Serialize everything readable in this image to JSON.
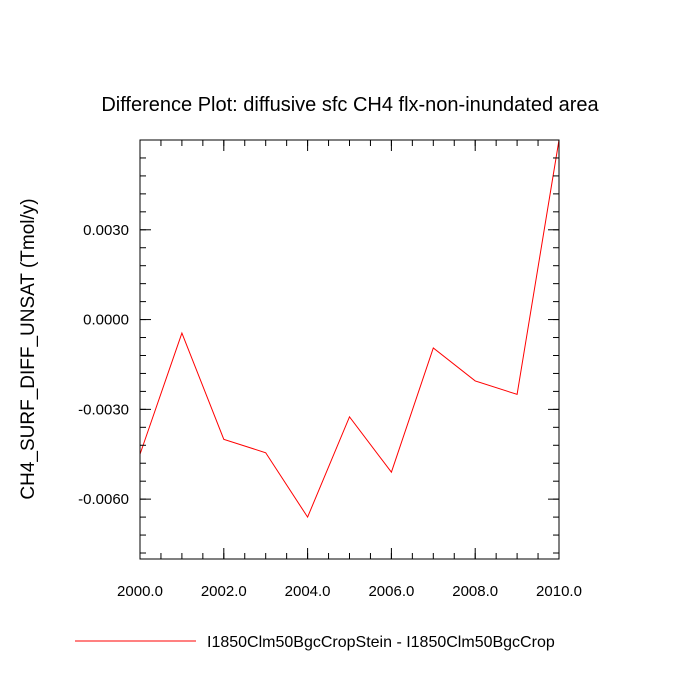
{
  "chart_data": {
    "type": "line",
    "title": "Difference Plot: diffusive sfc CH4 flx-non-inundated area",
    "xlabel": "",
    "ylabel": "CH4_SURF_DIFF_UNSAT  (Tmol/y)",
    "xlim": [
      2000.0,
      2010.0
    ],
    "ylim": [
      -0.008,
      0.006
    ],
    "x_ticks": [
      2000.0,
      2002.0,
      2004.0,
      2006.0,
      2008.0,
      2010.0
    ],
    "x_tick_labels": [
      "2000.0",
      "2002.0",
      "2004.0",
      "2006.0",
      "2008.0",
      "2010.0"
    ],
    "x_minor_step": 0.5,
    "y_ticks": [
      -0.006,
      -0.003,
      0.0,
      0.003
    ],
    "y_tick_labels": [
      "-0.0060",
      "-0.0030",
      "0.0000",
      "0.0030"
    ],
    "y_minor_step": 0.0006,
    "grid": false,
    "legend_position": "bottom",
    "series": [
      {
        "name": "I1850Clm50BgcCropStein - I1850Clm50BgcCrop",
        "color": "#ff0000",
        "x": [
          2000,
          2001,
          2002,
          2003,
          2004,
          2005,
          2006,
          2007,
          2008,
          2009,
          2010
        ],
        "y": [
          -0.0045,
          -0.00045,
          -0.004,
          -0.00445,
          -0.0066,
          -0.00325,
          -0.0051,
          -0.00095,
          -0.00205,
          -0.0025,
          0.006
        ]
      }
    ]
  }
}
